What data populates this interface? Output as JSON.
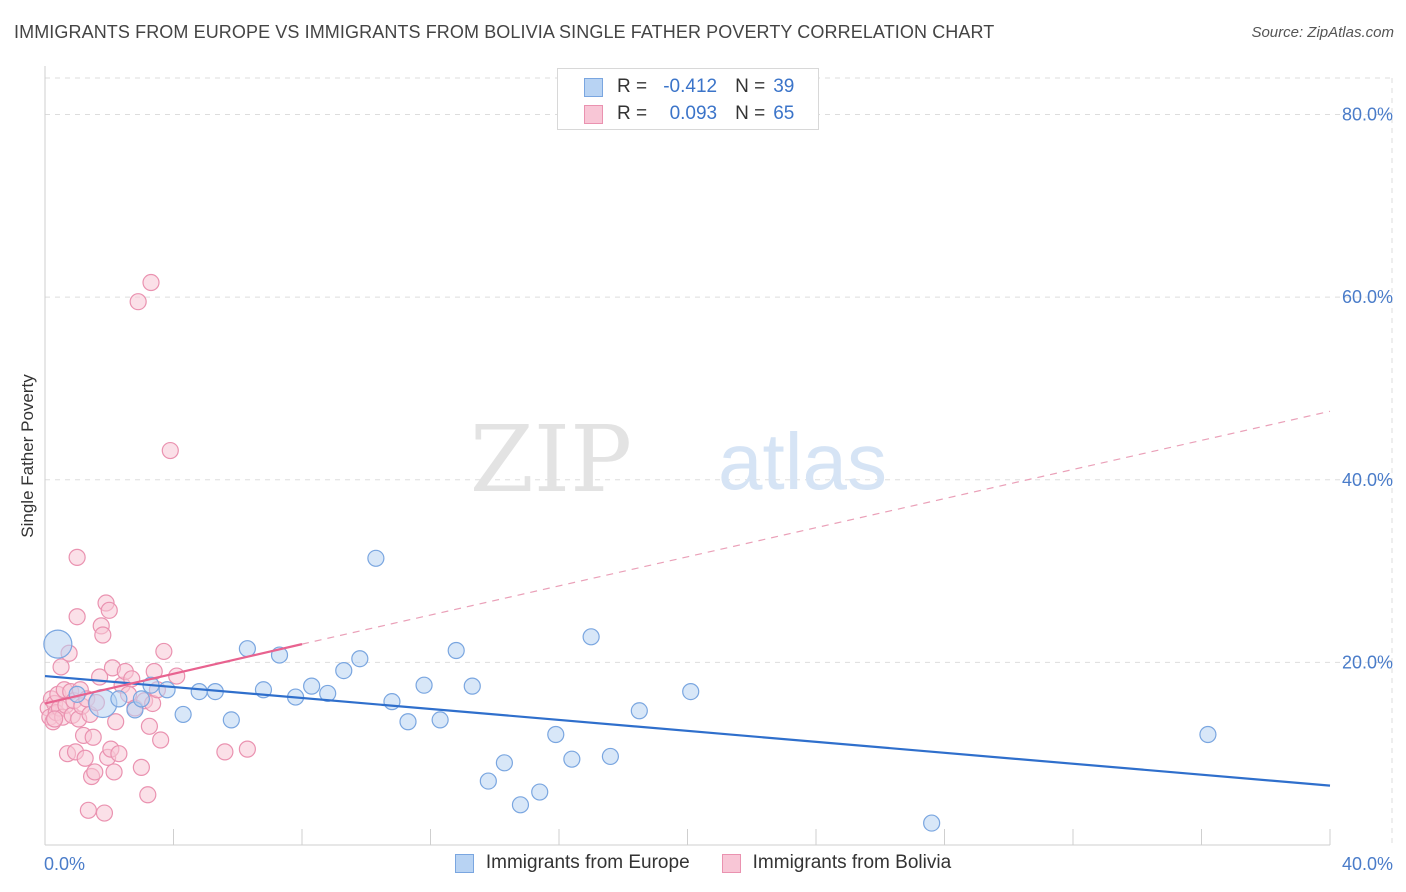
{
  "title": "IMMIGRANTS FROM EUROPE VS IMMIGRANTS FROM BOLIVIA SINGLE FATHER POVERTY CORRELATION CHART",
  "source": "Source: ZipAtlas.com",
  "watermark": {
    "zip": "ZIP",
    "atlas": "atlas"
  },
  "legend": {
    "r_label": "R =",
    "n_label": "N =",
    "rows": [
      {
        "name": "Immigrants from Europe",
        "r": "-0.412",
        "n": "39"
      },
      {
        "name": "Immigrants from Bolivia",
        "r": "0.093",
        "n": "65"
      }
    ]
  },
  "colors": {
    "europe_fill": "#b8d3f3",
    "europe_stroke": "#7aa6e0",
    "europe_line": "#2f6fcc",
    "bolivia_fill": "#f8c6d6",
    "bolivia_stroke": "#ea92b0",
    "bolivia_line": "#e8628f",
    "grid": "#dddddd",
    "axis_text": "#4a7cc9"
  },
  "chart_data": {
    "type": "scatter",
    "title": "IMMIGRANTS FROM EUROPE VS IMMIGRANTS FROM BOLIVIA SINGLE FATHER POVERTY CORRELATION CHART",
    "xlabel": "",
    "ylabel": "Single Father Poverty",
    "xlim": [
      0,
      40
    ],
    "ylim": [
      0,
      84
    ],
    "x_tick_labels": [
      "0.0%",
      "40.0%"
    ],
    "y_ticks": [
      20,
      40,
      60,
      80
    ],
    "y_tick_labels": [
      "20.0%",
      "40.0%",
      "60.0%",
      "80.0%"
    ],
    "series": [
      {
        "name": "Immigrants from Europe",
        "r": -0.412,
        "n": 39,
        "trend": {
          "x": [
            0,
            40
          ],
          "y": [
            18.5,
            6.5
          ],
          "style": "solid"
        },
        "points": [
          {
            "x": 0.4,
            "y": 22.0,
            "big": true
          },
          {
            "x": 1.0,
            "y": 16.5
          },
          {
            "x": 1.8,
            "y": 15.5,
            "big": true
          },
          {
            "x": 2.3,
            "y": 16.0
          },
          {
            "x": 2.8,
            "y": 14.8
          },
          {
            "x": 3.3,
            "y": 17.5
          },
          {
            "x": 3.8,
            "y": 17.0
          },
          {
            "x": 4.3,
            "y": 14.3
          },
          {
            "x": 4.8,
            "y": 16.8
          },
          {
            "x": 5.3,
            "y": 16.8
          },
          {
            "x": 5.8,
            "y": 13.7
          },
          {
            "x": 6.3,
            "y": 21.5
          },
          {
            "x": 6.8,
            "y": 17.0
          },
          {
            "x": 7.3,
            "y": 20.8
          },
          {
            "x": 7.8,
            "y": 16.2
          },
          {
            "x": 8.3,
            "y": 17.4
          },
          {
            "x": 8.8,
            "y": 16.6
          },
          {
            "x": 9.3,
            "y": 19.1
          },
          {
            "x": 9.8,
            "y": 20.4
          },
          {
            "x": 10.3,
            "y": 31.4
          },
          {
            "x": 10.8,
            "y": 15.7
          },
          {
            "x": 11.3,
            "y": 13.5
          },
          {
            "x": 11.8,
            "y": 17.5
          },
          {
            "x": 12.3,
            "y": 13.7
          },
          {
            "x": 12.8,
            "y": 21.3
          },
          {
            "x": 13.3,
            "y": 17.4
          },
          {
            "x": 13.8,
            "y": 7.0
          },
          {
            "x": 14.3,
            "y": 9.0
          },
          {
            "x": 14.8,
            "y": 4.4
          },
          {
            "x": 15.4,
            "y": 5.8
          },
          {
            "x": 15.9,
            "y": 12.1
          },
          {
            "x": 16.4,
            "y": 9.4
          },
          {
            "x": 17.0,
            "y": 22.8
          },
          {
            "x": 17.6,
            "y": 9.7
          },
          {
            "x": 18.5,
            "y": 14.7
          },
          {
            "x": 20.1,
            "y": 16.8
          },
          {
            "x": 27.6,
            "y": 2.4
          },
          {
            "x": 36.2,
            "y": 12.1
          },
          {
            "x": 3.0,
            "y": 16.0
          }
        ]
      },
      {
        "name": "Immigrants from Bolivia",
        "r": 0.093,
        "n": 65,
        "trend": {
          "x": [
            0,
            8
          ],
          "y": [
            15.5,
            22.0
          ],
          "style": "solid"
        },
        "trend_extended": {
          "x": [
            8,
            40
          ],
          "y": [
            22.0,
            47.5
          ],
          "style": "dashed"
        },
        "points": [
          {
            "x": 0.1,
            "y": 15.0
          },
          {
            "x": 0.15,
            "y": 14.0
          },
          {
            "x": 0.2,
            "y": 16.0
          },
          {
            "x": 0.25,
            "y": 13.5
          },
          {
            "x": 0.3,
            "y": 15.5
          },
          {
            "x": 0.35,
            "y": 14.5
          },
          {
            "x": 0.4,
            "y": 16.5
          },
          {
            "x": 0.45,
            "y": 15.0
          },
          {
            "x": 0.5,
            "y": 19.5
          },
          {
            "x": 0.55,
            "y": 14.0
          },
          {
            "x": 0.6,
            "y": 17.0
          },
          {
            "x": 0.65,
            "y": 15.3
          },
          {
            "x": 0.7,
            "y": 10.0
          },
          {
            "x": 0.75,
            "y": 21.0
          },
          {
            "x": 0.8,
            "y": 16.8
          },
          {
            "x": 0.85,
            "y": 14.2
          },
          {
            "x": 0.9,
            "y": 15.8
          },
          {
            "x": 0.95,
            "y": 10.2
          },
          {
            "x": 1.0,
            "y": 25.0
          },
          {
            "x": 1.0,
            "y": 31.5
          },
          {
            "x": 1.05,
            "y": 13.8
          },
          {
            "x": 1.1,
            "y": 17.0
          },
          {
            "x": 1.15,
            "y": 15.2
          },
          {
            "x": 1.2,
            "y": 12.0
          },
          {
            "x": 1.25,
            "y": 9.5
          },
          {
            "x": 1.3,
            "y": 16.0
          },
          {
            "x": 1.35,
            "y": 3.8
          },
          {
            "x": 1.4,
            "y": 14.3
          },
          {
            "x": 1.45,
            "y": 7.5
          },
          {
            "x": 1.5,
            "y": 11.8
          },
          {
            "x": 1.55,
            "y": 8.0
          },
          {
            "x": 1.6,
            "y": 15.6
          },
          {
            "x": 1.7,
            "y": 18.4
          },
          {
            "x": 1.75,
            "y": 24.0
          },
          {
            "x": 1.8,
            "y": 23.0
          },
          {
            "x": 1.85,
            "y": 3.5
          },
          {
            "x": 1.9,
            "y": 26.5
          },
          {
            "x": 1.95,
            "y": 9.6
          },
          {
            "x": 2.0,
            "y": 25.7
          },
          {
            "x": 2.05,
            "y": 10.5
          },
          {
            "x": 2.1,
            "y": 19.4
          },
          {
            "x": 2.15,
            "y": 8.0
          },
          {
            "x": 2.2,
            "y": 13.5
          },
          {
            "x": 2.3,
            "y": 10.0
          },
          {
            "x": 2.4,
            "y": 17.5
          },
          {
            "x": 2.5,
            "y": 19.0
          },
          {
            "x": 2.6,
            "y": 16.5
          },
          {
            "x": 2.7,
            "y": 18.2
          },
          {
            "x": 2.8,
            "y": 15.0
          },
          {
            "x": 2.9,
            "y": 59.5
          },
          {
            "x": 3.0,
            "y": 8.5
          },
          {
            "x": 3.1,
            "y": 15.8
          },
          {
            "x": 3.2,
            "y": 5.5
          },
          {
            "x": 3.25,
            "y": 13.0
          },
          {
            "x": 3.3,
            "y": 61.6
          },
          {
            "x": 3.35,
            "y": 15.5
          },
          {
            "x": 3.4,
            "y": 19.0
          },
          {
            "x": 3.5,
            "y": 17.0
          },
          {
            "x": 3.6,
            "y": 11.5
          },
          {
            "x": 3.7,
            "y": 21.2
          },
          {
            "x": 3.9,
            "y": 43.2
          },
          {
            "x": 4.1,
            "y": 18.5
          },
          {
            "x": 5.6,
            "y": 10.2
          },
          {
            "x": 6.3,
            "y": 10.5
          },
          {
            "x": 0.3,
            "y": 13.8
          }
        ]
      }
    ]
  }
}
